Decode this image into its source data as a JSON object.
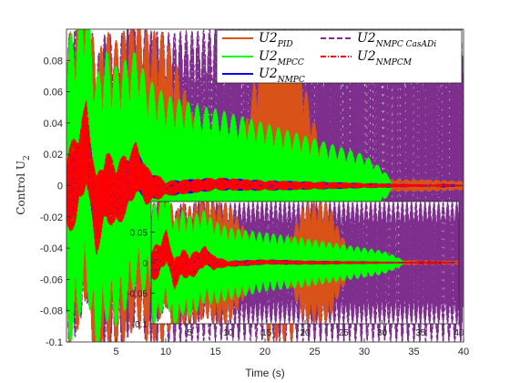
{
  "chart_data": {
    "type": "line",
    "xlabel": "Time (s)",
    "ylabel": "Control U",
    "ylabel_sub": "2",
    "xlim": [
      0,
      40
    ],
    "ylim": [
      -0.1,
      0.1
    ],
    "x_ticks": [
      "5",
      "10",
      "15",
      "20",
      "25",
      "30",
      "35",
      "40"
    ],
    "y_ticks": [
      "-0.1",
      "-0.08",
      "-0.06",
      "-0.04",
      "-0.02",
      "0",
      "0.02",
      "0.04",
      "0.06",
      "0.08"
    ],
    "legend_position": "top-right",
    "series": [
      {
        "name": "U2",
        "sub": "PID",
        "color": "#D95319",
        "style": "solid",
        "envelope": [
          [
            0,
            0.1
          ],
          [
            10,
            0.1
          ],
          [
            12,
            0.06
          ],
          [
            14,
            0.02
          ],
          [
            17,
            0.008
          ],
          [
            20,
            0.1
          ],
          [
            23,
            0.1
          ],
          [
            24.5,
            0.05
          ],
          [
            26,
            0.02
          ],
          [
            30,
            0.003
          ],
          [
            33,
            0.004
          ],
          [
            36,
            0.004
          ],
          [
            40,
            0.003
          ]
        ]
      },
      {
        "name": "U2",
        "sub": "MPCC",
        "color": "#00FF00",
        "style": "solid",
        "envelope": [
          [
            0,
            0.1
          ],
          [
            6,
            0.08
          ],
          [
            10,
            0.06
          ],
          [
            14,
            0.05
          ],
          [
            20,
            0.04
          ],
          [
            25,
            0.03
          ],
          [
            30,
            0.02
          ],
          [
            32,
            0.01
          ],
          [
            33,
            0.0
          ],
          [
            40,
            0.0
          ]
        ]
      },
      {
        "name": "U2",
        "sub": "NMPC",
        "color": "#0000FF",
        "style": "solid",
        "envelope": [
          [
            0,
            0.02
          ],
          [
            6,
            0.015
          ],
          [
            10,
            0.005
          ],
          [
            40,
            0.0
          ]
        ]
      },
      {
        "name": "U2",
        "sub": "NMPC CasADi",
        "color": "#7E2F8E",
        "style": "dashed",
        "envelope": [
          [
            0,
            0.1
          ],
          [
            10,
            0.1
          ],
          [
            20,
            0.1
          ],
          [
            30,
            0.1
          ],
          [
            35,
            0.1
          ],
          [
            40,
            0.1
          ]
        ]
      },
      {
        "name": "U2",
        "sub": "NMPCM",
        "color": "#FF0000",
        "style": "dashdot",
        "envelope": [
          [
            0,
            0.03
          ],
          [
            6,
            0.02
          ],
          [
            10,
            0.005
          ],
          [
            40,
            0.0
          ]
        ]
      }
    ],
    "key_points": [
      {
        "x": 0.0,
        "y": -0.005
      },
      {
        "x": 1.0,
        "y": 0.004
      },
      {
        "x": 2.0,
        "y": 0.028
      },
      {
        "x": 3.0,
        "y": -0.02
      },
      {
        "x": 4.0,
        "y": 0.0
      },
      {
        "x": 5.0,
        "y": -0.007
      },
      {
        "x": 6.5,
        "y": 0.005
      },
      {
        "x": 7.0,
        "y": 0.012
      },
      {
        "x": 8.0,
        "y": 0.0
      },
      {
        "x": 10.0,
        "y": -0.002
      },
      {
        "x": 15.0,
        "y": 0.001
      },
      {
        "x": 20.0,
        "y": 0.0
      },
      {
        "x": 40.0,
        "y": 0.0
      }
    ],
    "inset": {
      "xlim": [
        0,
        40
      ],
      "ylim": [
        -0.1,
        0.1
      ],
      "x_ticks": [
        "5",
        "10",
        "15",
        "20",
        "25",
        "30",
        "35",
        "40"
      ],
      "y_ticks": [
        "-0.1",
        "-0.05",
        "0",
        "0.05"
      ]
    }
  }
}
